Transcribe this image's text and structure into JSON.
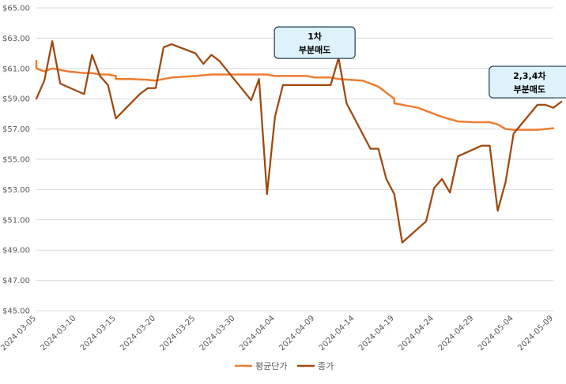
{
  "chart_data": {
    "type": "line",
    "ylim": [
      45,
      65
    ],
    "ytick_labels": [
      "$45.00",
      "$47.00",
      "$49.00",
      "$51.00",
      "$53.00",
      "$55.00",
      "$57.00",
      "$59.00",
      "$61.00",
      "$63.00",
      "$65.00"
    ],
    "yticks": [
      45,
      47,
      49,
      51,
      53,
      55,
      57,
      59,
      61,
      63,
      65
    ],
    "xlim": [
      "2024-03-05",
      "2024-05-09"
    ],
    "xtick_labels": [
      "2024-03-05",
      "2024-03-10",
      "2024-03-15",
      "2024-03-20",
      "2024-03-25",
      "2024-03-30",
      "2024-04-04",
      "2024-04-09",
      "2024-04-14",
      "2024-04-19",
      "2024-04-24",
      "2024-04-29",
      "2024-05-04",
      "2024-05-09"
    ],
    "grid": true,
    "legend_position": "bottom",
    "series": [
      {
        "name": "평균단가",
        "color": "#ED7D31",
        "points": [
          [
            "2024-03-05",
            61.5
          ],
          [
            "2024-03-05",
            61.0
          ],
          [
            "2024-03-06",
            60.8
          ],
          [
            "2024-03-07",
            61.0
          ],
          [
            "2024-03-08",
            60.9
          ],
          [
            "2024-03-09",
            60.8
          ],
          [
            "2024-03-11",
            60.7
          ],
          [
            "2024-03-12",
            60.7
          ],
          [
            "2024-03-13",
            60.6
          ],
          [
            "2024-03-14",
            60.6
          ],
          [
            "2024-03-15",
            60.5
          ],
          [
            "2024-03-15",
            60.3
          ],
          [
            "2024-03-17",
            60.3
          ],
          [
            "2024-03-19",
            60.25
          ],
          [
            "2024-03-20",
            60.2
          ],
          [
            "2024-03-21",
            60.3
          ],
          [
            "2024-03-22",
            60.4
          ],
          [
            "2024-03-25",
            60.5
          ],
          [
            "2024-03-27",
            60.6
          ],
          [
            "2024-03-30",
            60.6
          ],
          [
            "2024-04-02",
            60.6
          ],
          [
            "2024-04-03",
            60.6
          ],
          [
            "2024-04-04",
            60.5
          ],
          [
            "2024-04-08",
            60.5
          ],
          [
            "2024-04-09",
            60.4
          ],
          [
            "2024-04-11",
            60.4
          ],
          [
            "2024-04-12",
            60.3
          ],
          [
            "2024-04-15",
            60.2
          ],
          [
            "2024-04-16",
            60.0
          ],
          [
            "2024-04-17",
            59.8
          ],
          [
            "2024-04-18",
            59.4
          ],
          [
            "2024-04-19",
            59.0
          ],
          [
            "2024-04-19",
            58.7
          ],
          [
            "2024-04-22",
            58.4
          ],
          [
            "2024-04-23",
            58.2
          ],
          [
            "2024-04-25",
            57.8
          ],
          [
            "2024-04-27",
            57.5
          ],
          [
            "2024-04-29",
            57.45
          ],
          [
            "2024-05-01",
            57.45
          ],
          [
            "2024-05-02",
            57.3
          ],
          [
            "2024-05-03",
            57.0
          ],
          [
            "2024-05-04",
            56.95
          ],
          [
            "2024-05-06",
            56.95
          ],
          [
            "2024-05-07",
            56.95
          ],
          [
            "2024-05-09",
            57.05
          ]
        ]
      },
      {
        "name": "종가",
        "color": "#9E480E",
        "points": [
          [
            "2024-03-05",
            59.0
          ],
          [
            "2024-03-06",
            60.2
          ],
          [
            "2024-03-07",
            62.8
          ],
          [
            "2024-03-08",
            60.0
          ],
          [
            "2024-03-11",
            59.3
          ],
          [
            "2024-03-12",
            61.9
          ],
          [
            "2024-03-13",
            60.5
          ],
          [
            "2024-03-14",
            59.9
          ],
          [
            "2024-03-15",
            57.7
          ],
          [
            "2024-03-18",
            59.3
          ],
          [
            "2024-03-19",
            59.7
          ],
          [
            "2024-03-20",
            59.7
          ],
          [
            "2024-03-21",
            62.4
          ],
          [
            "2024-03-22",
            62.6
          ],
          [
            "2024-03-25",
            62.0
          ],
          [
            "2024-03-26",
            61.3
          ],
          [
            "2024-03-27",
            61.9
          ],
          [
            "2024-03-28",
            61.5
          ],
          [
            "2024-04-01",
            58.9
          ],
          [
            "2024-04-02",
            60.3
          ],
          [
            "2024-04-03",
            52.7
          ],
          [
            "2024-04-04",
            57.8
          ],
          [
            "2024-04-05",
            59.9
          ],
          [
            "2024-04-08",
            59.9
          ],
          [
            "2024-04-11",
            59.9
          ],
          [
            "2024-04-12",
            61.7
          ],
          [
            "2024-04-13",
            58.7
          ],
          [
            "2024-04-16",
            55.7
          ],
          [
            "2024-04-17",
            55.7
          ],
          [
            "2024-04-18",
            53.7
          ],
          [
            "2024-04-19",
            52.7
          ],
          [
            "2024-04-20",
            49.5
          ],
          [
            "2024-04-23",
            50.9
          ],
          [
            "2024-04-24",
            53.1
          ],
          [
            "2024-04-25",
            53.7
          ],
          [
            "2024-04-26",
            52.8
          ],
          [
            "2024-04-27",
            55.2
          ],
          [
            "2024-04-30",
            55.9
          ],
          [
            "2024-05-01",
            55.9
          ],
          [
            "2024-05-02",
            51.6
          ],
          [
            "2024-05-03",
            53.5
          ],
          [
            "2024-05-04",
            56.7
          ],
          [
            "2024-05-07",
            58.6
          ],
          [
            "2024-05-08",
            58.6
          ],
          [
            "2024-05-09",
            58.4
          ],
          [
            "2024-05-10",
            58.8
          ]
        ]
      }
    ],
    "annotations": [
      {
        "line1": "1차",
        "line2": "부분매도",
        "anchor_date": "2024-04-09",
        "anchor_value": 62.7
      },
      {
        "line1": "2,3,4차",
        "line2": "부분매도",
        "anchor_date": "2024-05-06",
        "anchor_value": 60.1
      }
    ],
    "callout_style": {
      "fill": "#DDF2FB",
      "stroke": "#1F3A4D"
    },
    "gridline_color": "#D9D9D9"
  }
}
